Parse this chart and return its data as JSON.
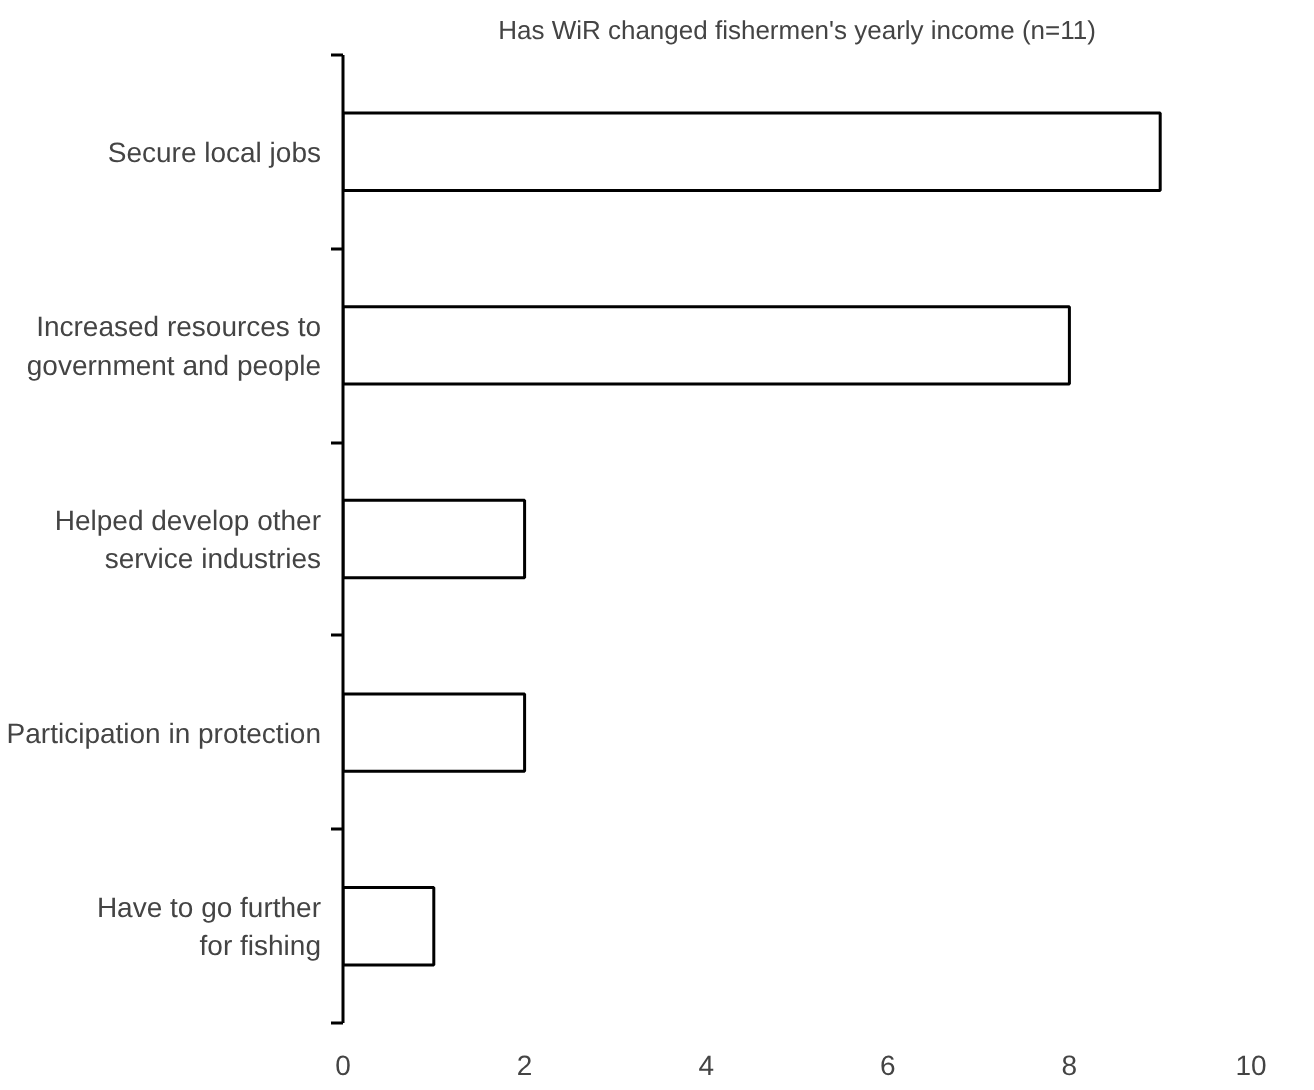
{
  "chart_data": {
    "type": "bar",
    "orientation": "horizontal",
    "title": "Has WiR changed fishermen's yearly income (n=11)",
    "categories": [
      "Secure local jobs",
      "Increased resources to\ngovernment and people",
      "Helped develop other\nservice industries",
      "Participation in protection",
      "Have to go further\nfor fishing"
    ],
    "values": [
      9,
      8,
      2,
      2,
      1
    ],
    "color": "#ffffff",
    "xlim": [
      0,
      10
    ],
    "xticks": [
      0,
      2,
      4,
      6,
      8,
      10
    ],
    "grid": false
  }
}
